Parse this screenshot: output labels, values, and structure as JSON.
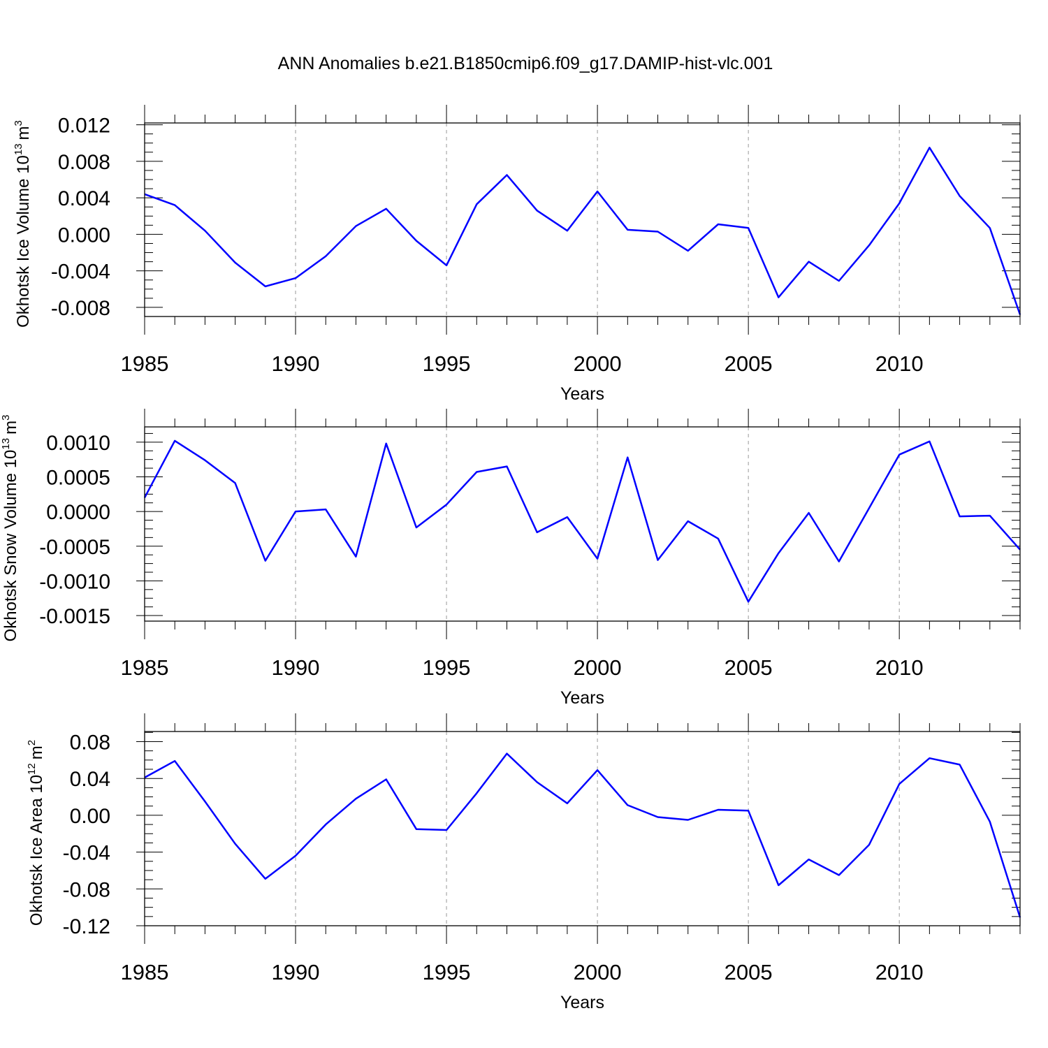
{
  "figure": {
    "title": "ANN Anomalies b.e21.B1850cmip6.f09_g17.DAMIP-hist-vlc.001"
  },
  "chart_data": [
    {
      "type": "line",
      "title": "",
      "xlabel": "Years",
      "ylabel": {
        "text": "Okhotsk Ice Volume 10",
        "exponent": "13",
        "unit": "m",
        "unit_exponent": "3"
      },
      "xlim": [
        1985,
        2014
      ],
      "ylim": [
        -0.009,
        0.0122
      ],
      "x_ticks": [
        1985,
        1990,
        1995,
        2000,
        2005,
        2010
      ],
      "x_tick_labels": [
        "1985",
        "1990",
        "1995",
        "2000",
        "2005",
        "2010"
      ],
      "y_ticks": [
        0.012,
        0.008,
        0.004,
        0.0,
        -0.004,
        -0.008
      ],
      "y_tick_labels": [
        "0.012",
        "0.008",
        "0.004",
        "0.000",
        "-0.004",
        "-0.008"
      ],
      "grid": "vertical dashed at major x ticks",
      "line_color": "#0000ff",
      "series": [
        {
          "x": [
            1985,
            1986,
            1987,
            1988,
            1989,
            1990,
            1991,
            1992,
            1993,
            1994,
            1995,
            1996,
            1997,
            1998,
            1999,
            2000,
            2001,
            2002,
            2003,
            2004,
            2005,
            2006,
            2007,
            2008,
            2009,
            2010,
            2011,
            2012,
            2013,
            2014
          ],
          "values": [
            0.0044,
            0.0032,
            0.0004,
            -0.0031,
            -0.0057,
            -0.0048,
            -0.0024,
            0.0009,
            0.0028,
            -0.0007,
            -0.0034,
            0.0033,
            0.0065,
            0.0026,
            0.0004,
            0.0047,
            0.0005,
            0.0003,
            -0.0018,
            0.0011,
            0.0007,
            -0.0069,
            -0.003,
            -0.0051,
            -0.0012,
            0.0034,
            0.0095,
            0.0042,
            0.0007,
            -0.0088
          ]
        }
      ]
    },
    {
      "type": "line",
      "title": "",
      "xlabel": "Years",
      "ylabel": {
        "text": "Okhotsk Snow Volume 10",
        "exponent": "13",
        "unit": "m",
        "unit_exponent": "3"
      },
      "xlim": [
        1985,
        2014
      ],
      "ylim": [
        -0.00158,
        0.00122
      ],
      "x_ticks": [
        1985,
        1990,
        1995,
        2000,
        2005,
        2010
      ],
      "x_tick_labels": [
        "1985",
        "1990",
        "1995",
        "2000",
        "2005",
        "2010"
      ],
      "y_ticks": [
        0.001,
        0.0005,
        0.0,
        -0.0005,
        -0.001,
        -0.0015
      ],
      "y_tick_labels": [
        "0.0010",
        "0.0005",
        "0.0000",
        "-0.0005",
        "-0.0010",
        "-0.0015"
      ],
      "grid": "vertical dashed at major x ticks",
      "line_color": "#0000ff",
      "series": [
        {
          "x": [
            1985,
            1986,
            1987,
            1988,
            1989,
            1990,
            1991,
            1992,
            1993,
            1994,
            1995,
            1996,
            1997,
            1998,
            1999,
            2000,
            2001,
            2002,
            2003,
            2004,
            2005,
            2006,
            2007,
            2008,
            2009,
            2010,
            2011,
            2012,
            2013,
            2014
          ],
          "values": [
            0.0002,
            0.00102,
            0.00074,
            0.00041,
            -0.00071,
            0.0,
            3e-05,
            -0.00065,
            0.00098,
            -0.00023,
            0.0001,
            0.00057,
            0.00065,
            -0.0003,
            -8e-05,
            -0.00068,
            0.00078,
            -0.0007,
            -0.00014,
            -0.00039,
            -0.0013,
            -0.0006,
            -2e-05,
            -0.00072,
            5e-05,
            0.00082,
            0.00101,
            -7e-05,
            -6e-05,
            -0.00055
          ]
        }
      ]
    },
    {
      "type": "line",
      "title": "",
      "xlabel": "Years",
      "ylabel": {
        "text": "Okhotsk Ice Area 10",
        "exponent": "12",
        "unit": "m",
        "unit_exponent": "2"
      },
      "xlim": [
        1985,
        2014
      ],
      "ylim": [
        -0.12,
        0.091
      ],
      "x_ticks": [
        1985,
        1990,
        1995,
        2000,
        2005,
        2010
      ],
      "x_tick_labels": [
        "1985",
        "1990",
        "1995",
        "2000",
        "2005",
        "2010"
      ],
      "y_ticks": [
        0.08,
        0.04,
        0.0,
        -0.04,
        -0.08,
        -0.12
      ],
      "y_tick_labels": [
        "0.08",
        "0.04",
        "0.00",
        "-0.04",
        "-0.08",
        "-0.12"
      ],
      "grid": "vertical dashed at major x ticks",
      "line_color": "#0000ff",
      "series": [
        {
          "x": [
            1985,
            1986,
            1987,
            1988,
            1989,
            1990,
            1991,
            1992,
            1993,
            1994,
            1995,
            1996,
            1997,
            1998,
            1999,
            2000,
            2001,
            2002,
            2003,
            2004,
            2005,
            2006,
            2007,
            2008,
            2009,
            2010,
            2011,
            2012,
            2013,
            2014
          ],
          "values": [
            0.041,
            0.059,
            0.015,
            -0.031,
            -0.069,
            -0.044,
            -0.01,
            0.018,
            0.039,
            -0.015,
            -0.016,
            0.024,
            0.067,
            0.036,
            0.013,
            0.049,
            0.011,
            -0.002,
            -0.005,
            0.006,
            0.005,
            -0.076,
            -0.048,
            -0.065,
            -0.032,
            0.034,
            0.062,
            0.055,
            -0.007,
            -0.111
          ]
        }
      ]
    }
  ]
}
